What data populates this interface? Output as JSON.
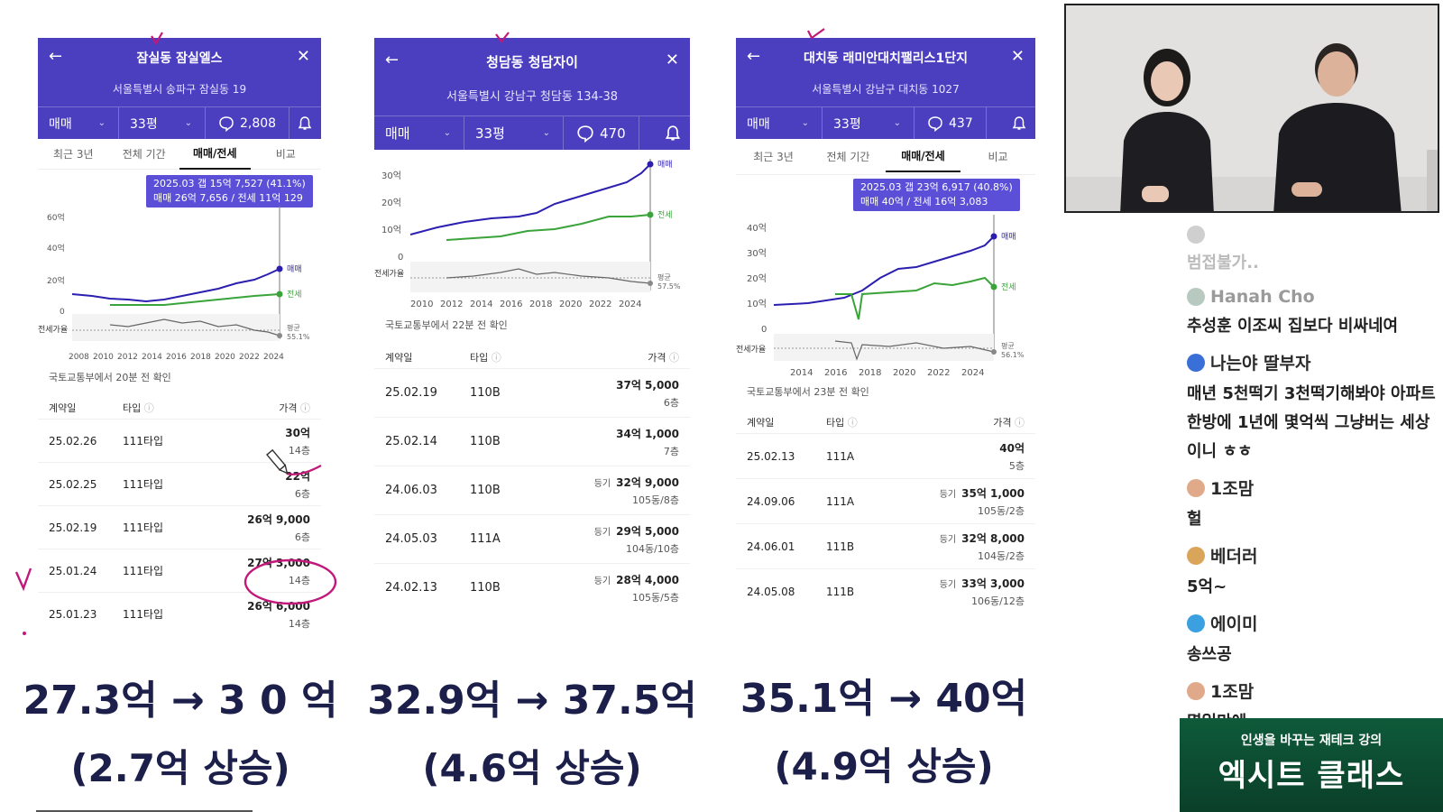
{
  "panels": [
    {
      "title": "잠실동 잠실엘스",
      "address": "서울특별시 송파구 잠실동 19",
      "deal_type": "매매",
      "size": "33평",
      "comments": "2,808",
      "tabs": [
        "최근 3년",
        "전체 기간",
        "매매/전세",
        "비교"
      ],
      "tooltip_line1": "2025.03  갭 15억 7,527 (41.1%)",
      "tooltip_line2": "매매 26억 7,656 / 전세 11억 129",
      "series_label_sale": "매매",
      "series_label_jeonse": "전세",
      "ratio_label": "전세가율",
      "avg_label": "평균",
      "avg_value": "55.1%",
      "y_ticks": [
        "60억",
        "40억",
        "20억",
        "0"
      ],
      "x_ticks": [
        "2008",
        "2010",
        "2012",
        "2014",
        "2016",
        "2018",
        "2020",
        "2022",
        "2024"
      ],
      "note": "국토교통부에서 20분 전 확인",
      "headers": [
        "계약일",
        "타입",
        "가격"
      ],
      "rows": [
        {
          "date": "25.02.26",
          "type": "111타입",
          "badge": "",
          "price": "30억",
          "floor": "14층"
        },
        {
          "date": "25.02.25",
          "type": "111타입",
          "badge": "",
          "price": "22억",
          "floor": "6층"
        },
        {
          "date": "25.02.19",
          "type": "111타입",
          "badge": "",
          "price": "26억 9,000",
          "floor": "6층"
        },
        {
          "date": "25.01.24",
          "type": "111타입",
          "badge": "",
          "price": "27억 3,000",
          "floor": "14층"
        },
        {
          "date": "25.01.23",
          "type": "111타입",
          "badge": "",
          "price": "26억 6,000",
          "floor": "14층"
        }
      ]
    },
    {
      "title": "청담동 청담자이",
      "address": "서울특별시 강남구 청담동 134-38",
      "deal_type": "매매",
      "size": "33평",
      "comments": "470",
      "series_label_sale": "매매",
      "series_label_jeonse": "전세",
      "ratio_label": "전세가율",
      "avg_label": "평균",
      "avg_value": "57.5%",
      "y_ticks": [
        "30억",
        "20억",
        "10억",
        "0"
      ],
      "x_ticks": [
        "2010",
        "2012",
        "2014",
        "2016",
        "2018",
        "2020",
        "2022",
        "2024"
      ],
      "note": "국토교통부에서 22분 전 확인",
      "headers": [
        "계약일",
        "타입",
        "가격"
      ],
      "rows": [
        {
          "date": "25.02.19",
          "type": "110B",
          "badge": "",
          "price": "37억 5,000",
          "floor": "6층"
        },
        {
          "date": "25.02.14",
          "type": "110B",
          "badge": "",
          "price": "34억 1,000",
          "floor": "7층"
        },
        {
          "date": "24.06.03",
          "type": "110B",
          "badge": "등기",
          "price": "32억 9,000",
          "floor": "105동/8층"
        },
        {
          "date": "24.05.03",
          "type": "111A",
          "badge": "등기",
          "price": "29억 5,000",
          "floor": "104동/10층"
        },
        {
          "date": "24.02.13",
          "type": "110B",
          "badge": "등기",
          "price": "28억 4,000",
          "floor": "105동/5층"
        }
      ]
    },
    {
      "title": "대치동 래미안대치팰리스1단지",
      "address": "서울특별시 강남구 대치동 1027",
      "deal_type": "매매",
      "size": "33평",
      "comments": "437",
      "tabs": [
        "최근 3년",
        "전체 기간",
        "매매/전세",
        "비교"
      ],
      "tooltip_line1": "2025.03  갭 23억 6,917 (40.8%)",
      "tooltip_line2": "매매 40억 / 전세 16억 3,083",
      "series_label_sale": "매매",
      "series_label_jeonse": "전세",
      "ratio_label": "전세가율",
      "avg_label": "평균",
      "avg_value": "56.1%",
      "y_ticks": [
        "40억",
        "30억",
        "20억",
        "10억",
        "0"
      ],
      "x_ticks": [
        "2014",
        "2016",
        "2018",
        "2020",
        "2022",
        "2024"
      ],
      "note": "국토교통부에서 23분 전 확인",
      "headers": [
        "계약일",
        "타입",
        "가격"
      ],
      "rows": [
        {
          "date": "25.02.13",
          "type": "111A",
          "badge": "",
          "price": "40억",
          "floor": "5층"
        },
        {
          "date": "24.09.06",
          "type": "111A",
          "badge": "등기",
          "price": "35억 1,000",
          "floor": "105동/2층"
        },
        {
          "date": "24.06.01",
          "type": "111B",
          "badge": "등기",
          "price": "32억 8,000",
          "floor": "104동/2층"
        },
        {
          "date": "24.05.08",
          "type": "111B",
          "badge": "등기",
          "price": "33억 3,000",
          "floor": "106동/12층"
        }
      ]
    }
  ],
  "summaries": [
    {
      "change": "27.3억 → 3 0 억",
      "rise": "(2.7억 상승)"
    },
    {
      "change": "32.9억 → 37.5억",
      "rise": "(4.6억 상승)"
    },
    {
      "change": "35.1억 → 40억",
      "rise": "(4.9억 상승)"
    }
  ],
  "chat": [
    {
      "name": "",
      "message": "범접불가..",
      "avatar_color": "#cfcfcf"
    },
    {
      "name": "Hanah Cho",
      "message": "추성훈 이조씨 집보다 비싸네여",
      "avatar_color": "#b7c9c0"
    },
    {
      "name": "나는야 딸부자",
      "message": "매년 5천떡기 3천떡기해봐야 아파트 한방에 1년에 몇억씩 그냥버는 세상이니 ㅎㅎ",
      "avatar_color": "#3a6fd8"
    },
    {
      "name": "1조맘",
      "message": "헐",
      "avatar_color": "#e0a98a"
    },
    {
      "name": "베더러",
      "message": "5억~",
      "avatar_color": "#d9a55a"
    },
    {
      "name": "에이미",
      "message": "송쓰공",
      "avatar_color": "#3aa0e0"
    },
    {
      "name": "1조맘",
      "message": "몇일만에....",
      "avatar_color": "#e0a98a"
    }
  ],
  "banner": {
    "subtitle": "인생을 바꾸는 재테크 강의",
    "title": "엑시트 클래스"
  },
  "colors": {
    "header": "#4b3fbf",
    "sale_line": "#2c1fb0",
    "jeonse_line": "#3aa33a",
    "annotation": "#c2187a"
  }
}
